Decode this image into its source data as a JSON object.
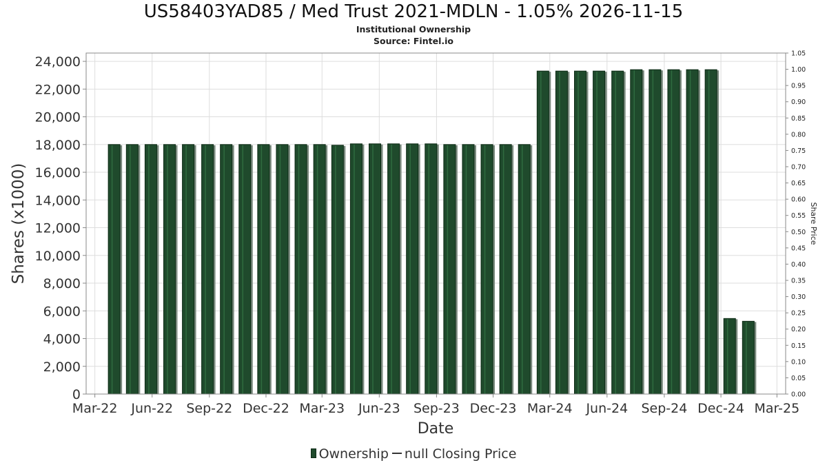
{
  "header": {
    "title": "US58403YAD85 / Med Trust 2021-MDLN - 1.05% 2026-11-15",
    "subtitle": "Institutional Ownership",
    "source": "Source: Fintel.io"
  },
  "legend": {
    "ownership": "Ownership",
    "price": "null Closing Price"
  },
  "colors": {
    "bar": "#1f4a2c",
    "bar_dark": "#0d2a15",
    "bar_shadow": "#7a8a7e",
    "grid": "#dddddd",
    "axis": "#888888"
  },
  "chart_data": {
    "type": "bar",
    "title": "US58403YAD85 / Med Trust 2021-MDLN - 1.05% 2026-11-15",
    "subtitle": "Institutional Ownership",
    "xlabel": "Date",
    "ylabel": "Shares (x1000)",
    "y2label": "Share Price",
    "x_range": [
      "2022-02-15",
      "2025-03-15"
    ],
    "ylim": [
      0,
      24600
    ],
    "y2lim": [
      0,
      1.05
    ],
    "x_ticks": [
      {
        "date": "2022-03-01",
        "label": "Mar-22"
      },
      {
        "date": "2022-06-01",
        "label": "Jun-22"
      },
      {
        "date": "2022-09-01",
        "label": "Sep-22"
      },
      {
        "date": "2022-12-01",
        "label": "Dec-22"
      },
      {
        "date": "2023-03-01",
        "label": "Mar-23"
      },
      {
        "date": "2023-06-01",
        "label": "Jun-23"
      },
      {
        "date": "2023-09-01",
        "label": "Sep-23"
      },
      {
        "date": "2023-12-01",
        "label": "Dec-23"
      },
      {
        "date": "2024-03-01",
        "label": "Mar-24"
      },
      {
        "date": "2024-06-01",
        "label": "Jun-24"
      },
      {
        "date": "2024-09-01",
        "label": "Sep-24"
      },
      {
        "date": "2024-12-01",
        "label": "Dec-24"
      },
      {
        "date": "2025-03-01",
        "label": "Mar-25"
      }
    ],
    "y_ticks": [
      0,
      2000,
      4000,
      6000,
      8000,
      10000,
      12000,
      14000,
      16000,
      18000,
      20000,
      22000,
      24000
    ],
    "y_tick_labels": [
      "0",
      "2,000",
      "4,000",
      "6,000",
      "8,000",
      "10,000",
      "12,000",
      "14,000",
      "16,000",
      "18,000",
      "20,000",
      "22,000",
      "24,000"
    ],
    "y2_ticks": [
      "0.00",
      "0.05",
      "0.10",
      "0.15",
      "0.20",
      "0.25",
      "0.30",
      "0.35",
      "0.40",
      "0.45",
      "0.50",
      "0.55",
      "0.60",
      "0.65",
      "0.70",
      "0.75",
      "0.80",
      "0.85",
      "0.90",
      "0.95",
      "1.00",
      "1.05"
    ],
    "grid": true,
    "legend_position": "bottom",
    "series": [
      {
        "name": "Ownership",
        "points": [
          {
            "x": "2022-04-01",
            "y": 18000
          },
          {
            "x": "2022-04-30",
            "y": 18000
          },
          {
            "x": "2022-05-30",
            "y": 18000
          },
          {
            "x": "2022-06-29",
            "y": 18000
          },
          {
            "x": "2022-07-29",
            "y": 18000
          },
          {
            "x": "2022-08-29",
            "y": 18000
          },
          {
            "x": "2022-09-28",
            "y": 18000
          },
          {
            "x": "2022-10-28",
            "y": 18000
          },
          {
            "x": "2022-11-27",
            "y": 18000
          },
          {
            "x": "2022-12-27",
            "y": 18000
          },
          {
            "x": "2023-01-26",
            "y": 18000
          },
          {
            "x": "2023-02-25",
            "y": 18000
          },
          {
            "x": "2023-03-26",
            "y": 17950
          },
          {
            "x": "2023-04-25",
            "y": 18050
          },
          {
            "x": "2023-05-25",
            "y": 18050
          },
          {
            "x": "2023-06-24",
            "y": 18050
          },
          {
            "x": "2023-07-24",
            "y": 18050
          },
          {
            "x": "2023-08-23",
            "y": 18050
          },
          {
            "x": "2023-09-22",
            "y": 18000
          },
          {
            "x": "2023-10-22",
            "y": 18000
          },
          {
            "x": "2023-11-21",
            "y": 18000
          },
          {
            "x": "2023-12-21",
            "y": 18000
          },
          {
            "x": "2024-01-20",
            "y": 18000
          },
          {
            "x": "2024-02-19",
            "y": 23300
          },
          {
            "x": "2024-03-20",
            "y": 23300
          },
          {
            "x": "2024-04-19",
            "y": 23300
          },
          {
            "x": "2024-05-19",
            "y": 23300
          },
          {
            "x": "2024-06-18",
            "y": 23300
          },
          {
            "x": "2024-07-18",
            "y": 23400
          },
          {
            "x": "2024-08-17",
            "y": 23400
          },
          {
            "x": "2024-09-16",
            "y": 23400
          },
          {
            "x": "2024-10-16",
            "y": 23400
          },
          {
            "x": "2024-11-15",
            "y": 23400
          },
          {
            "x": "2024-12-15",
            "y": 5450
          },
          {
            "x": "2025-01-14",
            "y": 5250
          }
        ]
      }
    ]
  }
}
